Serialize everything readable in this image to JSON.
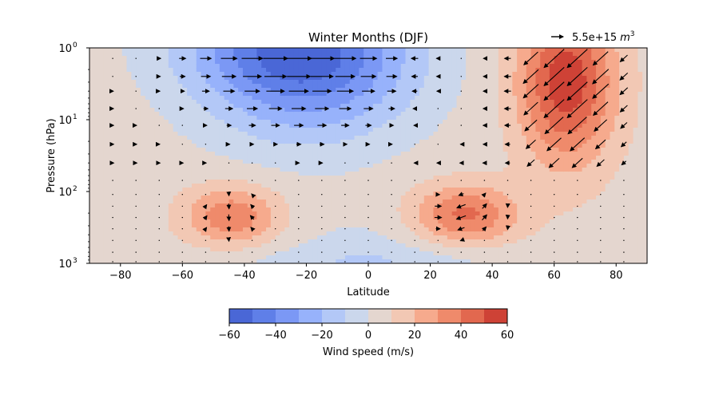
{
  "chart_data": {
    "type": "heatmap",
    "title": "Winter Months (DJF)",
    "xlabel": "Latitude",
    "ylabel": "Pressure (hPa)",
    "xlim": [
      -90,
      90
    ],
    "ylim": [
      1000,
      1
    ],
    "yscale": "log",
    "x_ticks": [
      -80,
      -60,
      -40,
      -20,
      0,
      20,
      40,
      60,
      80
    ],
    "x_tick_labels": [
      "−80",
      "−60",
      "−40",
      "−20",
      "0",
      "20",
      "40",
      "60",
      "80"
    ],
    "y_ticks": [
      1,
      10,
      100,
      1000
    ],
    "y_tick_labels": [
      {
        "base": "10",
        "exp": "0"
      },
      {
        "base": "10",
        "exp": "1"
      },
      {
        "base": "10",
        "exp": "2"
      },
      {
        "base": "10",
        "exp": "3"
      }
    ],
    "colorbar": {
      "label": "Wind speed (m/s)",
      "min": -60,
      "max": 60,
      "levels": [
        -60,
        -50,
        -40,
        -30,
        -20,
        -10,
        0,
        10,
        20,
        30,
        40,
        50,
        60
      ],
      "ticks": [
        -60,
        -40,
        -20,
        0,
        20,
        40,
        60
      ],
      "tick_labels": [
        "−60",
        "−40",
        "−20",
        "0",
        "20",
        "40",
        "60"
      ],
      "colors": [
        "#4a67d6",
        "#5f7fe8",
        "#7b98f5",
        "#97b2fb",
        "#b3c8f7",
        "#cbd7ec",
        "#e4d6cf",
        "#f2c8b4",
        "#f6aa8d",
        "#ef8a6b",
        "#e2684f",
        "#ce4236"
      ],
      "placement": "bottom"
    },
    "quiver_key": {
      "label_text": "5.5e+15",
      "unit_base": "m",
      "unit_exp": "3",
      "placement": "top-right"
    },
    "jets": [
      {
        "name": "tropical_easterly_strat",
        "lat": -20,
        "p": 1.4,
        "value": -55,
        "sigma_lat": 24,
        "sigma_logp": 0.75
      },
      {
        "name": "polar_night_jet",
        "lat": 64,
        "p": 3,
        "value": 52,
        "sigma_lat": 11,
        "sigma_logp": 0.8
      },
      {
        "name": "subtropical_jet_sh",
        "lat": -44,
        "p": 220,
        "value": 33,
        "sigma_lat": 11,
        "sigma_logp": 0.3
      },
      {
        "name": "subtropical_jet_nh",
        "lat": 31,
        "p": 210,
        "value": 38,
        "sigma_lat": 12,
        "sigma_logp": 0.3
      },
      {
        "name": "tropical_surface_easterly",
        "lat": 0,
        "p": 750,
        "value": -8,
        "sigma_lat": 20,
        "sigma_logp": 0.4
      }
    ],
    "background": {
      "value": 5,
      "upper_value": -6,
      "upper_value_lat": -35,
      "surface_value": -12
    }
  }
}
